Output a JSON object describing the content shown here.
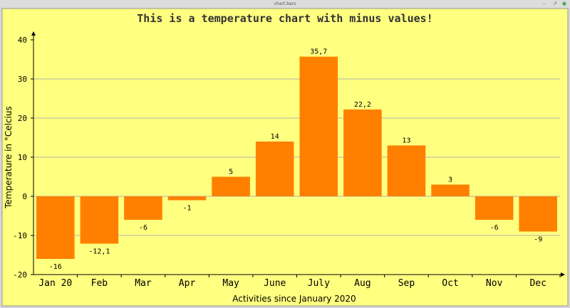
{
  "window": {
    "title": "chart.bars"
  },
  "chart_data": {
    "type": "bar",
    "title": "This is a temperature chart with minus values!",
    "xlabel": "Activities since January 2020",
    "ylabel": "Temperature in °Celcius",
    "ylim": [
      -20,
      40
    ],
    "yticks": [
      -20,
      -10,
      0,
      10,
      20,
      30,
      40
    ],
    "grid": true,
    "categories": [
      "Jan 20",
      "Feb",
      "Mar",
      "Apr",
      "May",
      "June",
      "July",
      "Aug",
      "Sep",
      "Oct",
      "Nov",
      "Dec"
    ],
    "values": [
      -16,
      -12.1,
      -6,
      -1,
      5,
      14,
      35.7,
      22.2,
      13,
      3,
      -6,
      -9
    ],
    "value_labels": [
      "-16",
      "-12,1",
      "-6",
      "-1",
      "5",
      "14",
      "35,7",
      "22,2",
      "13",
      "3",
      "-6",
      "-9"
    ],
    "colors": {
      "bar": "#ff8000",
      "background": "#ffff80",
      "grid": "#b0b0b0"
    }
  }
}
